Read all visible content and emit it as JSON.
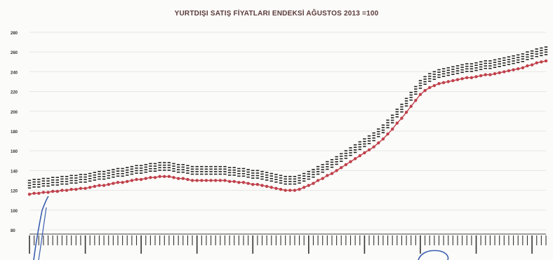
{
  "chart_data": {
    "type": "line",
    "title": "YURTDIŞI SATIŞ FİYATLARI ENDEKSİ AĞUSTOS 2013 =100",
    "ylim": [
      80,
      280
    ],
    "yticks": [
      "80",
      "100",
      "120",
      "140",
      "160",
      "180",
      "200",
      "220",
      "240",
      "260",
      "280"
    ],
    "grid": true,
    "legend": "none",
    "colors": {
      "series": "#c0404a",
      "labels": "#333333",
      "annotation": "#3a5fb0"
    },
    "series": [
      {
        "values": [
          116,
          117,
          117,
          118,
          118,
          119,
          119,
          120,
          120,
          121,
          121,
          122,
          122,
          123,
          124,
          125,
          125,
          126,
          127,
          128,
          128,
          129,
          130,
          131,
          131,
          132,
          133,
          133,
          134,
          134,
          134,
          133,
          132,
          132,
          131,
          130,
          130,
          130,
          130,
          130,
          130,
          130,
          130,
          129,
          129,
          128,
          128,
          127,
          126,
          126,
          125,
          124,
          123,
          122,
          121,
          120,
          120,
          120,
          121,
          123,
          125,
          127,
          130,
          132,
          135,
          137,
          140,
          143,
          146,
          149,
          152,
          155,
          158,
          161,
          164,
          168,
          172,
          177,
          182,
          188,
          193,
          199,
          205,
          211,
          217,
          221,
          224,
          226,
          228,
          229,
          230,
          231,
          232,
          233,
          234,
          234,
          235,
          236,
          237,
          237,
          238,
          239,
          240,
          241,
          242,
          243,
          244,
          246,
          247,
          249,
          250,
          251
        ]
      }
    ]
  }
}
